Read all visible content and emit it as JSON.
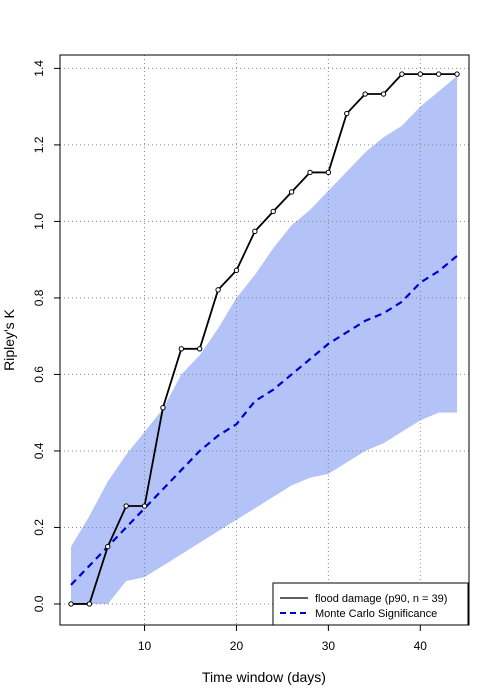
{
  "chart_data": {
    "type": "line",
    "xlabel": "Time window (days)",
    "ylabel": "Ripley's K",
    "xlim": [
      0.8,
      45.3
    ],
    "ylim": [
      -0.055,
      1.435
    ],
    "x_ticks": [
      10,
      20,
      30,
      40
    ],
    "y_ticks": [
      0.0,
      0.2,
      0.4,
      0.6,
      0.8,
      1.0,
      1.2,
      1.4
    ],
    "grid": true,
    "legend_position": "bottom-right",
    "colors": {
      "observed": "#000000",
      "monte_carlo": "#0000cc",
      "envelope": "#b3c3f7",
      "grid": "#888888"
    },
    "x": [
      2,
      4,
      6,
      8,
      10,
      12,
      14,
      16,
      18,
      20,
      22,
      24,
      26,
      28,
      30,
      32,
      34,
      36,
      38,
      40,
      42,
      44
    ],
    "series": [
      {
        "name": "flood damage (p90, n = 39)",
        "style": "solid-with-points",
        "values": [
          0.0,
          0.0,
          0.15,
          0.256,
          0.256,
          0.513,
          0.667,
          0.667,
          0.821,
          0.872,
          0.974,
          1.026,
          1.077,
          1.128,
          1.128,
          1.282,
          1.333,
          1.333,
          1.385,
          1.385,
          1.385,
          1.385
        ]
      },
      {
        "name": "Monte Carlo Significance",
        "style": "dashed",
        "values": [
          0.05,
          0.1,
          0.15,
          0.2,
          0.25,
          0.3,
          0.35,
          0.4,
          0.44,
          0.47,
          0.53,
          0.56,
          0.6,
          0.64,
          0.68,
          0.71,
          0.74,
          0.76,
          0.79,
          0.84,
          0.87,
          0.91
        ]
      }
    ],
    "envelope": {
      "upper": [
        0.15,
        0.23,
        0.32,
        0.39,
        0.45,
        0.51,
        0.6,
        0.65,
        0.72,
        0.8,
        0.86,
        0.93,
        0.99,
        1.03,
        1.08,
        1.13,
        1.18,
        1.22,
        1.25,
        1.3,
        1.34,
        1.38
      ],
      "lower": [
        0.0,
        0.0,
        0.0,
        0.06,
        0.07,
        0.1,
        0.13,
        0.16,
        0.19,
        0.22,
        0.25,
        0.28,
        0.31,
        0.33,
        0.34,
        0.37,
        0.4,
        0.42,
        0.45,
        0.48,
        0.5,
        0.5
      ]
    }
  }
}
